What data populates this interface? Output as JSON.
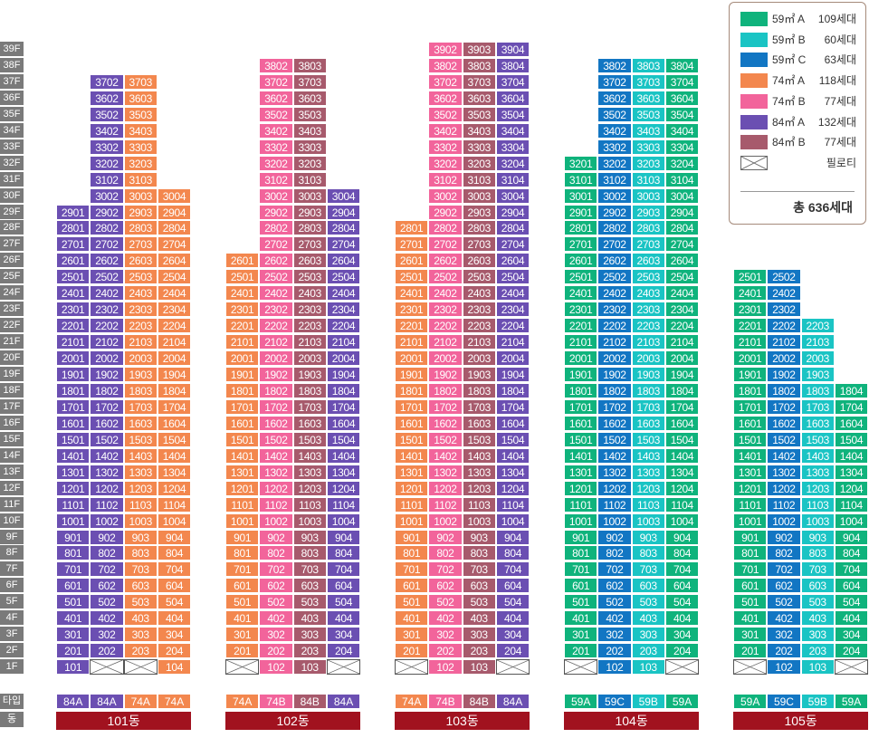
{
  "colors": {
    "59A": "#0fb37c",
    "59B": "#1ac4c4",
    "59C": "#1276c3",
    "74A": "#f3874e",
    "74B": "#f2649b",
    "84A": "#6b4fb2",
    "84B": "#a75a6c"
  },
  "floors": [
    "39F",
    "38F",
    "37F",
    "36F",
    "35F",
    "34F",
    "33F",
    "32F",
    "31F",
    "30F",
    "29F",
    "28F",
    "27F",
    "26F",
    "25F",
    "24F",
    "23F",
    "22F",
    "21F",
    "20F",
    "19F",
    "18F",
    "17F",
    "16F",
    "15F",
    "14F",
    "13F",
    "12F",
    "11F",
    "10F",
    "9F",
    "8F",
    "7F",
    "6F",
    "5F",
    "4F",
    "3F",
    "2F",
    "1F"
  ],
  "row_labels": {
    "type": "타입",
    "building": "동"
  },
  "buildings": [
    {
      "name": "101동",
      "types": [
        "84A",
        "84A",
        "74A",
        "74A"
      ],
      "tops": [
        29,
        37,
        37,
        30
      ],
      "pilotis": [
        false,
        true,
        true,
        false
      ]
    },
    {
      "name": "102동",
      "types": [
        "74A",
        "74B",
        "84B",
        "84A"
      ],
      "tops": [
        26,
        38,
        38,
        30
      ],
      "pilotis": [
        true,
        false,
        false,
        true
      ]
    },
    {
      "name": "103동",
      "types": [
        "74A",
        "74B",
        "84B",
        "84A"
      ],
      "tops": [
        28,
        39,
        39,
        39
      ],
      "pilotis": [
        true,
        false,
        false,
        true
      ]
    },
    {
      "name": "104동",
      "types": [
        "59A",
        "59C",
        "59B",
        "59A"
      ],
      "tops": [
        32,
        38,
        38,
        38
      ],
      "pilotis": [
        true,
        false,
        false,
        true
      ]
    },
    {
      "name": "105동",
      "types": [
        "59A",
        "59C",
        "59B",
        "59A"
      ],
      "tops": [
        25,
        25,
        22,
        18
      ],
      "pilotis": [
        true,
        false,
        false,
        true
      ]
    }
  ],
  "legend": {
    "items": [
      {
        "key": "59A",
        "type": "59㎡ A",
        "count": "109세대"
      },
      {
        "key": "59B",
        "type": "59㎡ B",
        "count": "60세대"
      },
      {
        "key": "59C",
        "type": "59㎡ C",
        "count": "63세대"
      },
      {
        "key": "74A",
        "type": "74㎡ A",
        "count": "118세대"
      },
      {
        "key": "74B",
        "type": "74㎡ B",
        "count": "77세대"
      },
      {
        "key": "84A",
        "type": "84㎡ A",
        "count": "132세대"
      },
      {
        "key": "84B",
        "type": "84㎡ B",
        "count": "77세대"
      }
    ],
    "piloti_label": "필로티",
    "total": "총 636세대"
  }
}
